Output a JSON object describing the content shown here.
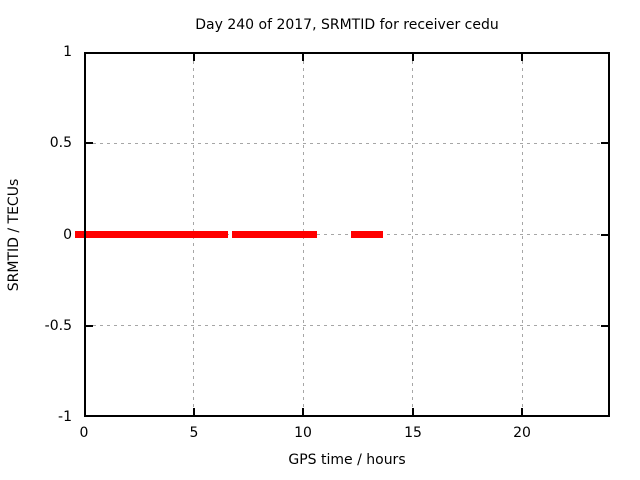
{
  "figure": {
    "title": "Day 240 of 2017, SRMTID for receiver cedu",
    "xlabel": "GPS time / hours",
    "ylabel": "SRMTID / TECUs"
  },
  "chart_data": {
    "type": "line",
    "title": "Day 240 of 2017, SRMTID for receiver cedu",
    "xlabel": "GPS time / hours",
    "ylabel": "SRMTID / TECUs",
    "xlim": [
      0,
      24
    ],
    "ylim": [
      -1,
      1
    ],
    "xticks": [
      0,
      5,
      10,
      15,
      20
    ],
    "yticks": [
      1,
      0.5,
      0,
      -0.5,
      -1
    ],
    "grid": "dashed, on ticks",
    "legend": "none",
    "series": [
      {
        "name": "SRMTID",
        "color": "#ff0000",
        "style": "thick horizontal line segments at y = 0",
        "segments": [
          {
            "x_start": -0.4,
            "x_end": 6.55,
            "y": 0
          },
          {
            "x_start": 6.75,
            "x_end": 10.65,
            "y": 0
          },
          {
            "x_start": 12.2,
            "x_end": 13.65,
            "y": 0
          }
        ]
      }
    ],
    "colors": {
      "background": "#ffffff",
      "border": "#000000",
      "grid": "#a6a6a6",
      "series": "#ff0000"
    }
  }
}
